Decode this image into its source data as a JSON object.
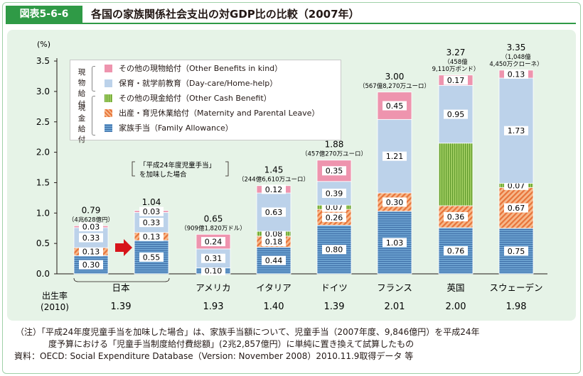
{
  "header": {
    "figure_label": "図表5-6-6",
    "title": "各国の家族関係社会支出の対GDP比の比較（2007年）"
  },
  "chart_data": {
    "type": "bar",
    "stacked": true,
    "yunit": "(%)",
    "ylim": [
      0,
      3.5
    ],
    "yticks": [
      "0.0",
      "0.5",
      "1.0",
      "1.5",
      "2.0",
      "2.5",
      "3.0",
      "3.5"
    ],
    "categories": [
      "日本",
      "日本",
      "アメリカ",
      "イタリア",
      "ドイツ",
      "フランス",
      "英国",
      "スウェーデン"
    ],
    "category_labels": [
      "日本",
      "アメリカ",
      "イタリア",
      "ドイツ",
      "フランス",
      "英国",
      "スウェーデン"
    ],
    "totals": [
      "0.79",
      "1.04",
      "0.65",
      "1.45",
      "1.88",
      "3.00",
      "3.27",
      "3.35"
    ],
    "amount_notes": [
      "（4兆628億円）",
      "",
      "（909億1,820万ドル）",
      "（244億6,610万ユーロ）",
      "（457億270万ユーロ）",
      "（567億8,270万ユーロ）",
      "（458億\n9,110万ポンド）",
      "（1,048億\n4,450万クローネ）"
    ],
    "series": [
      {
        "name": "家族手当（Family Allowance）",
        "color": "#6aa0cf",
        "pattern": "hlines",
        "values": [
          0.3,
          0.55,
          0.1,
          0.44,
          0.8,
          1.03,
          0.76,
          0.75
        ],
        "labels": [
          "0.30",
          "0.55",
          "0.10",
          "0.44",
          "0.80",
          "1.03",
          "0.76",
          "0.75"
        ]
      },
      {
        "name": "出産・育児休業給付（Maternity and Parental Leave）",
        "color": "#ef8b52",
        "pattern": "diag",
        "values": [
          0.13,
          0.13,
          0,
          0.18,
          0.26,
          0.3,
          0.36,
          0.67
        ],
        "labels": [
          "0.13",
          "0.13",
          "",
          "0.18",
          "0.26",
          "0.30",
          "0.36",
          "0.67"
        ]
      },
      {
        "name": "その他の現金給付（Other Cash Benefit）",
        "color": "#8cc04a",
        "pattern": "vlines",
        "values": [
          0,
          0,
          0,
          0.08,
          0.07,
          0,
          1.03,
          0.07
        ],
        "labels": [
          "",
          "",
          "",
          "0.08",
          "0.07",
          "",
          "",
          "0.07"
        ]
      },
      {
        "name": "保育・就学前教育（Day-care/Home-help）",
        "color": "#bcd2ea",
        "pattern": "solid",
        "values": [
          0.33,
          0.33,
          0.31,
          0.63,
          0.39,
          1.21,
          0.95,
          1.73
        ],
        "labels": [
          "0.33",
          "0.33",
          "0.31",
          "0.63",
          "0.39",
          "1.21",
          "0.95",
          "1.73"
        ]
      },
      {
        "name": "その他の現物給付（Other Benefits in kind）",
        "color": "#ee94ae",
        "pattern": "solid",
        "values": [
          0.03,
          0.03,
          0.24,
          0.12,
          0.35,
          0.45,
          0.17,
          0.13
        ],
        "labels": [
          "0.03",
          "0.03",
          "0.24",
          "0.12",
          "0.35",
          "0.45",
          "0.17",
          "0.13"
        ]
      }
    ],
    "japan_note": "「平成24年度児童手当」\nを加味した場合",
    "birth_rate_label": "出生率\n(2010)",
    "birth_rates": [
      "1.39",
      "",
      "1.93",
      "1.40",
      "1.39",
      "2.01",
      "2.00",
      "1.98"
    ]
  },
  "legend": {
    "groups": [
      {
        "label": "現物\n給付"
      },
      {
        "label": "現金\n給付"
      }
    ],
    "items": [
      "その他の現物給付（Other Benefits in kind）",
      "保育・就学前教育（Day-care/Home-help）",
      "その他の現金給付（Other Cash Benefit）",
      "出産・育児休業給付（Maternity and Parental Leave）",
      "家族手当（Family Allowance）"
    ]
  },
  "footnote": {
    "line1": "（注）「平成24年度児童手当を加味した場合」は、家族手当額について、児童手当（2007年度、9,846億円）を平成24年",
    "line2": "度予算における「児童手当制度給付費総額」(2兆2,857億円）に単純に置き換えて試算したもの",
    "line3": "資料：OECD: Social Expenditure Database（Version: November 2008）2010.11.9取得データ 等"
  }
}
